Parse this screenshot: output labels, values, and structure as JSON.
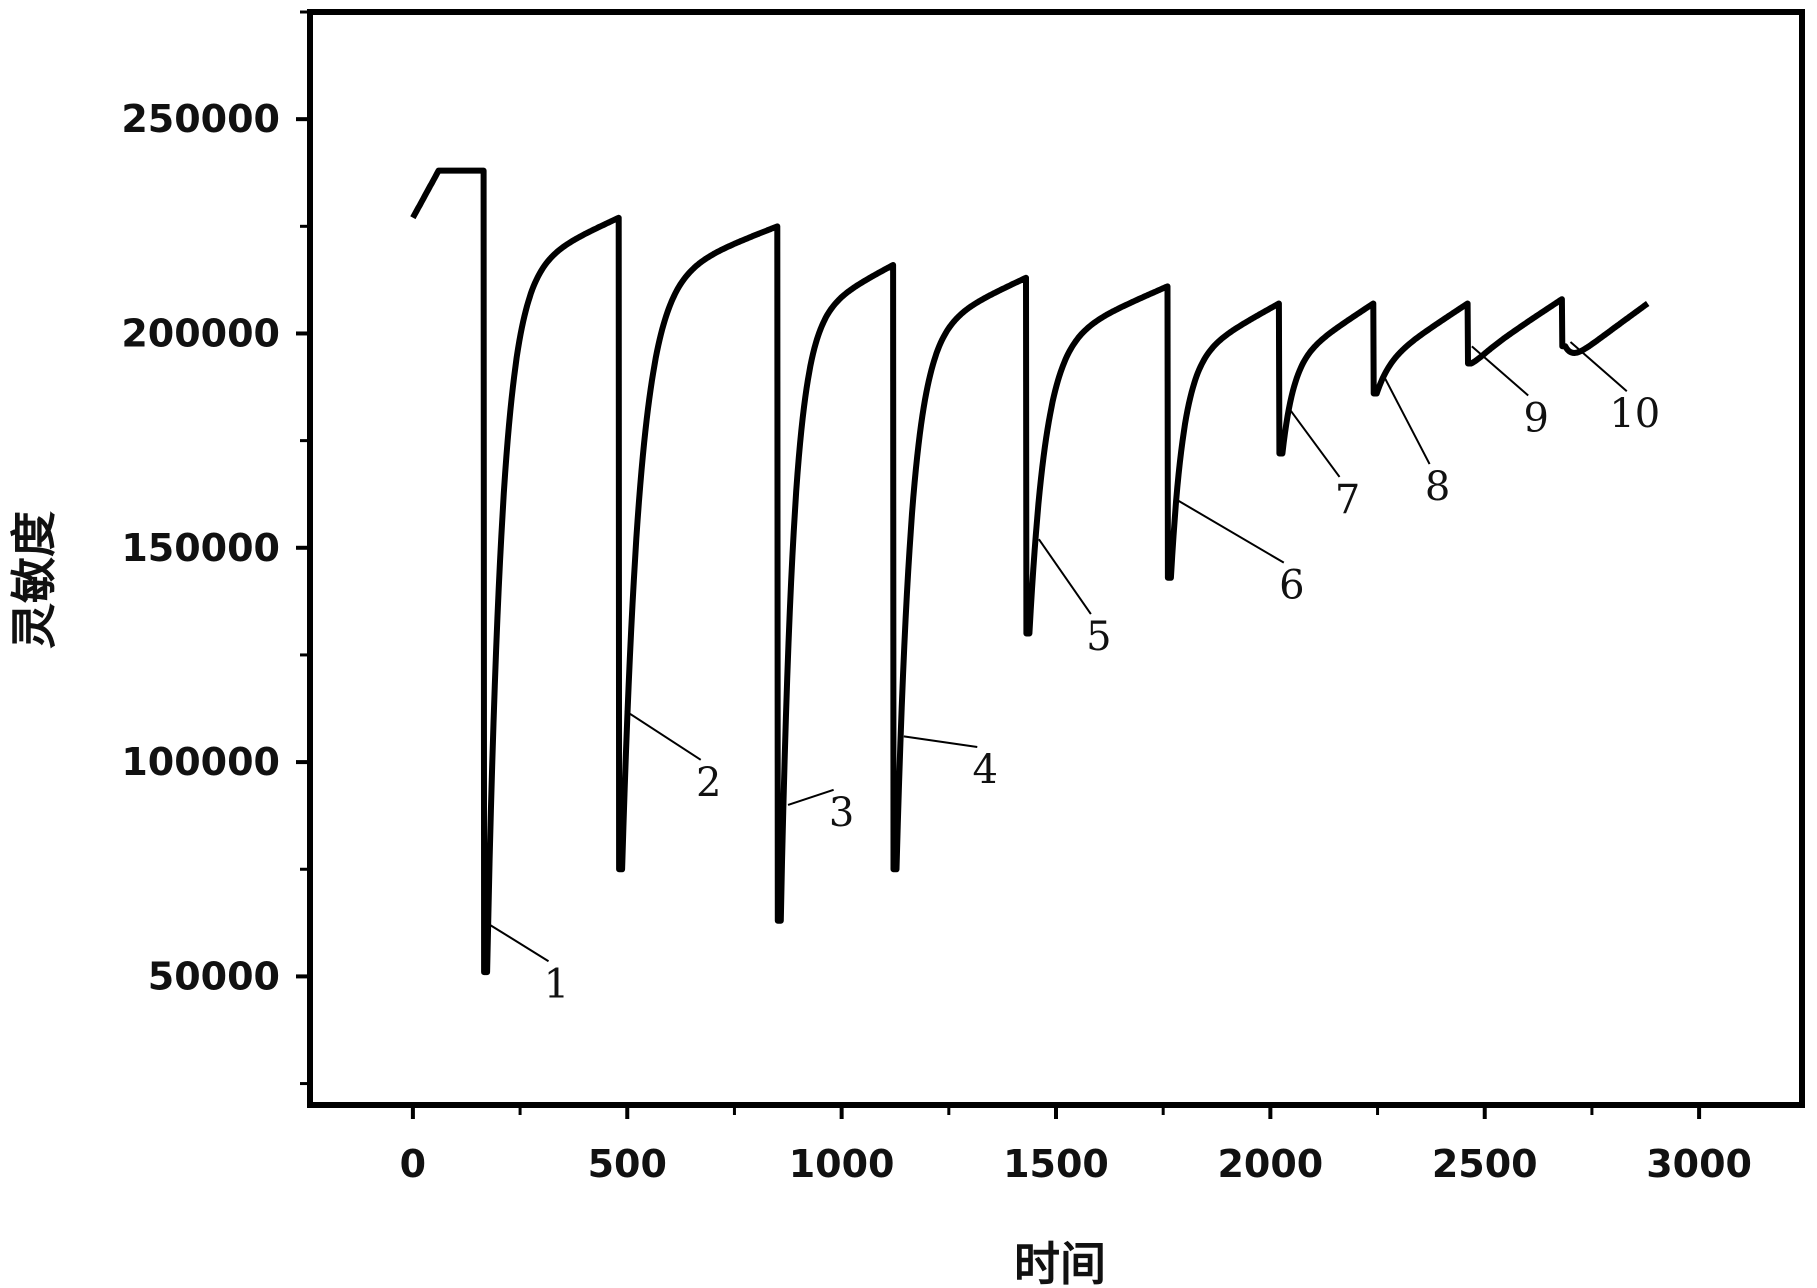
{
  "chart_data": {
    "type": "line",
    "title": "",
    "xlabel": "时间",
    "ylabel": "灵敏度",
    "xlim": [
      -240,
      3240
    ],
    "ylim": [
      20000,
      275000
    ],
    "xticks": [
      0,
      500,
      1000,
      1500,
      2000,
      2500,
      3000
    ],
    "xtick_labels": [
      "0",
      "500",
      "1000",
      "1500",
      "2000",
      "2500",
      "3000"
    ],
    "yticks": [
      50000,
      100000,
      150000,
      200000,
      250000
    ],
    "ytick_labels": [
      "50000",
      "100000",
      "150000",
      "200000",
      "250000"
    ],
    "grid": false,
    "series": [
      {
        "name": "",
        "color": "#000000",
        "cycles": [
          {
            "start": 0,
            "peak": 238000,
            "drop_x": 165,
            "min": 51000,
            "prev_peak_start": 227000
          },
          {
            "drop_x": 480,
            "min": 75000,
            "peak_before": 227000
          },
          {
            "drop_x": 850,
            "min": 63000,
            "peak_before": 225000
          },
          {
            "drop_x": 1120,
            "min": 75000,
            "peak_before": 216000
          },
          {
            "drop_x": 1430,
            "min": 130000,
            "peak_before": 213000
          },
          {
            "drop_x": 1760,
            "min": 143000,
            "peak_before": 211000
          },
          {
            "drop_x": 2020,
            "min": 172000,
            "peak_before": 207000
          },
          {
            "drop_x": 2240,
            "min": 186000,
            "peak_before": 207000
          },
          {
            "drop_x": 2460,
            "min": 193000,
            "peak_before": 207000
          },
          {
            "drop_x": 2680,
            "min": 197000,
            "peak_before": 208000
          }
        ],
        "end": {
          "x": 2880,
          "y": 207000
        }
      }
    ],
    "annotations": [
      {
        "label": "1",
        "point": [
          180,
          62000
        ],
        "text_pos": [
          335,
          47000
        ]
      },
      {
        "label": "2",
        "point": [
          495,
          112000
        ],
        "text_pos": [
          690,
          94000
        ]
      },
      {
        "label": "3",
        "point": [
          875,
          90000
        ],
        "text_pos": [
          1000,
          87000
        ]
      },
      {
        "label": "4",
        "point": [
          1145,
          106000
        ],
        "text_pos": [
          1335,
          97000
        ]
      },
      {
        "label": "5",
        "point": [
          1460,
          152000
        ],
        "text_pos": [
          1600,
          128000
        ]
      },
      {
        "label": "6",
        "point": [
          1785,
          161000
        ],
        "text_pos": [
          2050,
          140000
        ]
      },
      {
        "label": "7",
        "point": [
          2040,
          183000
        ],
        "text_pos": [
          2180,
          160000
        ]
      },
      {
        "label": "8",
        "point": [
          2265,
          190000
        ],
        "text_pos": [
          2390,
          163000
        ]
      },
      {
        "label": "9",
        "point": [
          2470,
          197000
        ],
        "text_pos": [
          2620,
          179000
        ]
      },
      {
        "label": "10",
        "point": [
          2700,
          198000
        ],
        "text_pos": [
          2850,
          180000
        ]
      }
    ]
  }
}
